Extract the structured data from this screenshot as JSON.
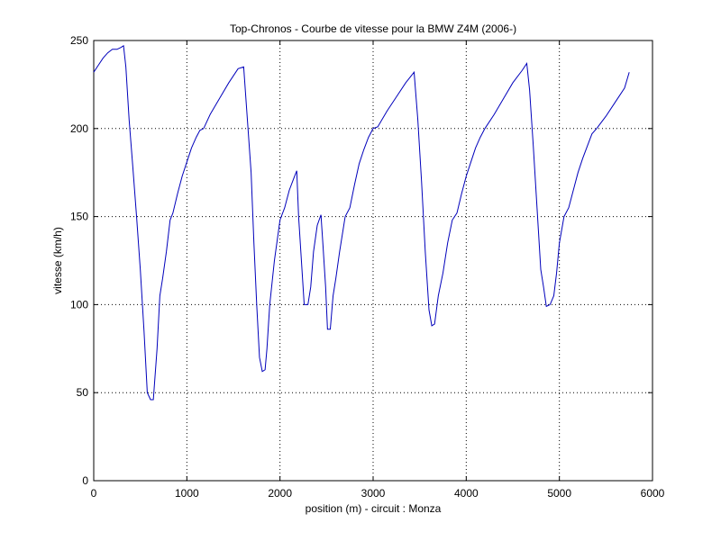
{
  "chart_data": {
    "type": "line",
    "title": "Top-Chronos - Courbe de vitesse pour la BMW Z4M (2006-)",
    "xlabel": "position (m) - circuit : Monza",
    "ylabel": "vitesse (km/h)",
    "xlim": [
      0,
      6000
    ],
    "ylim": [
      0,
      250
    ],
    "xticks": [
      0,
      1000,
      2000,
      3000,
      4000,
      5000,
      6000
    ],
    "yticks": [
      0,
      50,
      100,
      150,
      200,
      250
    ],
    "grid": true,
    "line_color": "#0000bb",
    "series": [
      {
        "x": [
          0,
          50,
          100,
          150,
          200,
          250,
          290,
          320,
          345,
          380,
          420,
          460,
          500,
          540,
          575,
          610,
          640,
          680,
          710,
          740,
          780,
          820,
          850,
          900,
          950,
          1000,
          1050,
          1100,
          1140,
          1180,
          1250,
          1350,
          1450,
          1550,
          1610,
          1650,
          1690,
          1720,
          1750,
          1780,
          1810,
          1840,
          1860,
          1890,
          1940,
          2000,
          2050,
          2100,
          2150,
          2180,
          2200,
          2230,
          2260,
          2300,
          2330,
          2360,
          2400,
          2440,
          2460,
          2490,
          2510,
          2540,
          2570,
          2600,
          2640,
          2700,
          2750,
          2800,
          2850,
          2900,
          2950,
          3000,
          3050,
          3150,
          3250,
          3350,
          3440,
          3480,
          3520,
          3560,
          3600,
          3630,
          3660,
          3700,
          3750,
          3800,
          3850,
          3900,
          3950,
          4000,
          4050,
          4100,
          4150,
          4200,
          4300,
          4400,
          4500,
          4600,
          4650,
          4680,
          4720,
          4760,
          4800,
          4830,
          4860,
          4900,
          4940,
          4970,
          5000,
          5050,
          5100,
          5150,
          5200,
          5250,
          5300,
          5350,
          5400,
          5500,
          5600,
          5700,
          5750
        ],
        "y": [
          232,
          236,
          240,
          243,
          245,
          245,
          246,
          247,
          235,
          205,
          178,
          150,
          120,
          85,
          50,
          46,
          46,
          75,
          105,
          115,
          130,
          148,
          152,
          163,
          173,
          181,
          189,
          195,
          199,
          200,
          208,
          217,
          226,
          234,
          235,
          205,
          175,
          135,
          100,
          70,
          62,
          63,
          75,
          100,
          125,
          148,
          155,
          165,
          172,
          176,
          150,
          125,
          100,
          100,
          110,
          130,
          145,
          151,
          135,
          110,
          86,
          86,
          105,
          115,
          130,
          150,
          155,
          168,
          180,
          188,
          195,
          200,
          201,
          210,
          218,
          226,
          232,
          205,
          170,
          130,
          97,
          88,
          89,
          105,
          118,
          135,
          148,
          152,
          163,
          173,
          181,
          189,
          195,
          200,
          208,
          217,
          226,
          233,
          237,
          222,
          190,
          155,
          120,
          110,
          99,
          100,
          105,
          118,
          135,
          150,
          155,
          165,
          175,
          183,
          190,
          197,
          200,
          207,
          215,
          223,
          232
        ]
      }
    ]
  }
}
